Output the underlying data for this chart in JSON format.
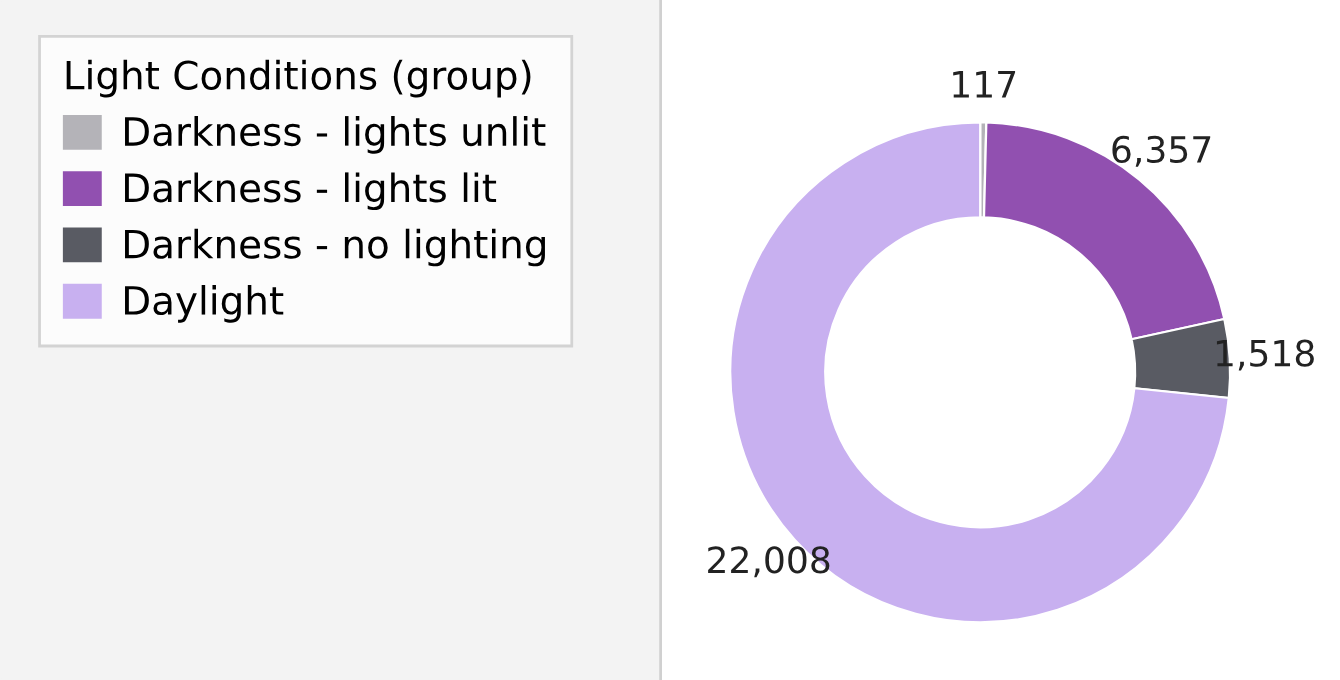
{
  "chart_data": {
    "type": "donut",
    "legend_title": "Light Conditions (group)",
    "categories": [
      "Darkness - lights unlit",
      "Darkness - lights lit",
      "Darkness - no lighting",
      "Daylight"
    ],
    "values": [
      117,
      6357,
      1518,
      22008
    ],
    "colors": [
      "#b4b3b8",
      "#9150b0",
      "#595b63",
      "#c8b0f0"
    ],
    "value_labels": [
      "117",
      "6,357",
      "1,518",
      "22,008"
    ],
    "legend": "left"
  }
}
